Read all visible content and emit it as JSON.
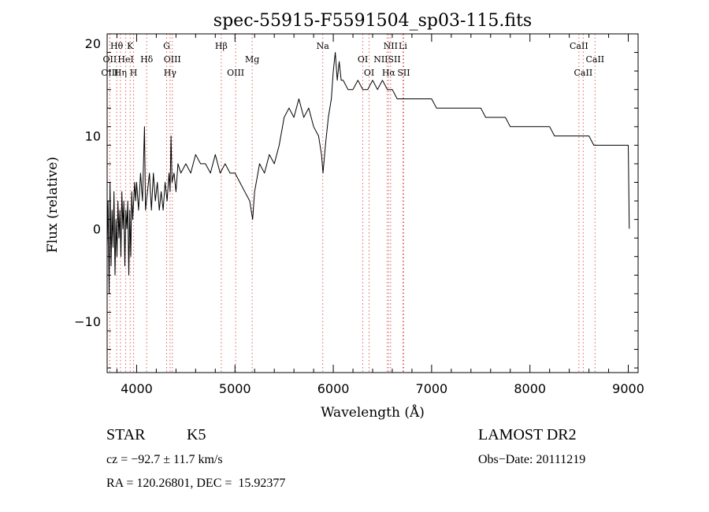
{
  "chart_data": {
    "type": "line",
    "title": "spec-55915-F5591504_sp03-115.fits",
    "xlabel": "Wavelength (Å)",
    "ylabel": "Flux (relative)",
    "xlim": [
      3700,
      9100
    ],
    "ylim": [
      -15.5,
      21
    ],
    "xticks": [
      4000,
      5000,
      6000,
      7000,
      8000,
      9000
    ],
    "xtick_labels": [
      "4000",
      "5000",
      "6000",
      "7000",
      "8000",
      "9000"
    ],
    "yticks": [
      -10,
      0,
      10,
      20
    ],
    "ytick_labels": [
      "−10",
      "0",
      "10",
      "20"
    ],
    "grid": false,
    "spectrum_color": "#000000",
    "line_marker_color": "#e06060",
    "series": [
      {
        "points": [
          [
            3700,
            -2
          ],
          [
            3710,
            3
          ],
          [
            3720,
            -7
          ],
          [
            3730,
            5
          ],
          [
            3740,
            -4
          ],
          [
            3750,
            2
          ],
          [
            3760,
            -2
          ],
          [
            3770,
            4
          ],
          [
            3780,
            -5
          ],
          [
            3790,
            1
          ],
          [
            3800,
            -3
          ],
          [
            3810,
            3
          ],
          [
            3820,
            -1
          ],
          [
            3830,
            2
          ],
          [
            3840,
            -3
          ],
          [
            3850,
            4
          ],
          [
            3860,
            0
          ],
          [
            3870,
            3
          ],
          [
            3880,
            -4
          ],
          [
            3890,
            2
          ],
          [
            3900,
            0
          ],
          [
            3910,
            3
          ],
          [
            3920,
            -5
          ],
          [
            3930,
            2
          ],
          [
            3940,
            -3
          ],
          [
            3950,
            4
          ],
          [
            3960,
            1
          ],
          [
            3970,
            3
          ],
          [
            3980,
            5
          ],
          [
            3990,
            3
          ],
          [
            4000,
            5
          ],
          [
            4020,
            2
          ],
          [
            4040,
            6
          ],
          [
            4060,
            3
          ],
          [
            4080,
            11
          ],
          [
            4090,
            2
          ],
          [
            4110,
            4
          ],
          [
            4130,
            6
          ],
          [
            4150,
            2
          ],
          [
            4170,
            6
          ],
          [
            4190,
            3
          ],
          [
            4210,
            5
          ],
          [
            4230,
            2
          ],
          [
            4250,
            4
          ],
          [
            4270,
            2
          ],
          [
            4290,
            5
          ],
          [
            4310,
            3
          ],
          [
            4330,
            6
          ],
          [
            4340,
            4
          ],
          [
            4350,
            10
          ],
          [
            4360,
            5
          ],
          [
            4380,
            6
          ],
          [
            4400,
            4
          ],
          [
            4420,
            7
          ],
          [
            4450,
            6
          ],
          [
            4500,
            7
          ],
          [
            4550,
            6
          ],
          [
            4600,
            8
          ],
          [
            4650,
            7
          ],
          [
            4700,
            7
          ],
          [
            4750,
            6
          ],
          [
            4800,
            8
          ],
          [
            4850,
            6
          ],
          [
            4900,
            7
          ],
          [
            4950,
            6
          ],
          [
            5000,
            6
          ],
          [
            5050,
            5
          ],
          [
            5100,
            4
          ],
          [
            5150,
            3
          ],
          [
            5180,
            1
          ],
          [
            5200,
            4
          ],
          [
            5250,
            7
          ],
          [
            5300,
            6
          ],
          [
            5350,
            8
          ],
          [
            5400,
            7
          ],
          [
            5450,
            9
          ],
          [
            5500,
            12
          ],
          [
            5550,
            13
          ],
          [
            5600,
            12
          ],
          [
            5650,
            14
          ],
          [
            5700,
            12
          ],
          [
            5750,
            13
          ],
          [
            5800,
            11
          ],
          [
            5850,
            10
          ],
          [
            5880,
            8
          ],
          [
            5895,
            6
          ],
          [
            5920,
            9
          ],
          [
            5950,
            12
          ],
          [
            5980,
            14
          ],
          [
            6000,
            17
          ],
          [
            6020,
            19
          ],
          [
            6040,
            16
          ],
          [
            6060,
            18
          ],
          [
            6080,
            16
          ],
          [
            6100,
            16
          ],
          [
            6150,
            15
          ],
          [
            6200,
            15
          ],
          [
            6250,
            16
          ],
          [
            6300,
            15
          ],
          [
            6350,
            15
          ],
          [
            6400,
            16
          ],
          [
            6450,
            15
          ],
          [
            6500,
            16
          ],
          [
            6550,
            15
          ],
          [
            6600,
            15
          ],
          [
            6650,
            14
          ],
          [
            6700,
            14
          ],
          [
            6750,
            14
          ],
          [
            6800,
            14
          ],
          [
            6850,
            14
          ],
          [
            6900,
            14
          ],
          [
            6950,
            14
          ],
          [
            7000,
            14
          ],
          [
            7050,
            13
          ],
          [
            7100,
            13
          ],
          [
            7150,
            13
          ],
          [
            7200,
            13
          ],
          [
            7250,
            13
          ],
          [
            7300,
            13
          ],
          [
            7350,
            13
          ],
          [
            7400,
            13
          ],
          [
            7450,
            13
          ],
          [
            7500,
            13
          ],
          [
            7550,
            12
          ],
          [
            7600,
            12
          ],
          [
            7650,
            12
          ],
          [
            7700,
            12
          ],
          [
            7750,
            12
          ],
          [
            7800,
            11
          ],
          [
            7850,
            11
          ],
          [
            7900,
            11
          ],
          [
            7950,
            11
          ],
          [
            8000,
            11
          ],
          [
            8050,
            11
          ],
          [
            8100,
            11
          ],
          [
            8150,
            11
          ],
          [
            8200,
            11
          ],
          [
            8250,
            10
          ],
          [
            8300,
            10
          ],
          [
            8350,
            10
          ],
          [
            8400,
            10
          ],
          [
            8450,
            10
          ],
          [
            8500,
            10
          ],
          [
            8550,
            10
          ],
          [
            8600,
            10
          ],
          [
            8650,
            9
          ],
          [
            8700,
            9
          ],
          [
            8750,
            9
          ],
          [
            8800,
            9
          ],
          [
            8850,
            9
          ],
          [
            8900,
            9
          ],
          [
            8950,
            9
          ],
          [
            9000,
            9
          ],
          [
            9010,
            0
          ]
        ]
      }
    ],
    "line_markers": [
      {
        "label": "Hθ",
        "wavelength": 3797,
        "row": 0
      },
      {
        "label": "K",
        "wavelength": 3934,
        "row": 0
      },
      {
        "label": "G",
        "wavelength": 4305,
        "row": 0
      },
      {
        "label": "Hβ",
        "wavelength": 4861,
        "row": 0
      },
      {
        "label": "Na",
        "wavelength": 5893,
        "row": 0
      },
      {
        "label": "NII",
        "wavelength": 6583,
        "row": 0
      },
      {
        "label": "Li",
        "wavelength": 6708,
        "row": 0
      },
      {
        "label": "CaII",
        "wavelength": 8498,
        "row": 0
      },
      {
        "label": "OII",
        "wavelength": 3727,
        "row": 1
      },
      {
        "label": "HeI",
        "wavelength": 3889,
        "row": 1
      },
      {
        "label": "Hδ",
        "wavelength": 4102,
        "row": 1
      },
      {
        "label": "OIII",
        "wavelength": 4363,
        "row": 1
      },
      {
        "label": "Mg",
        "wavelength": 5175,
        "row": 1
      },
      {
        "label": "OI",
        "wavelength": 6300,
        "row": 1
      },
      {
        "label": "NIISII",
        "wavelength": 6548,
        "row": 1
      },
      {
        "label": "CaII",
        "wavelength": 8662,
        "row": 1
      },
      {
        "label": "OIII",
        "wavelength": 3727,
        "row": 2
      },
      {
        "label": "Hη",
        "wavelength": 3835,
        "row": 2
      },
      {
        "label": "H",
        "wavelength": 3969,
        "row": 2
      },
      {
        "label": "Hγ",
        "wavelength": 4340,
        "row": 2
      },
      {
        "label": "OIII",
        "wavelength": 5007,
        "row": 2
      },
      {
        "label": "OI",
        "wavelength": 6364,
        "row": 2
      },
      {
        "label": "Hα",
        "wavelength": 6563,
        "row": 2
      },
      {
        "label": "SII",
        "wavelength": 6716,
        "row": 2
      },
      {
        "label": "CaII",
        "wavelength": 8542,
        "row": 2
      }
    ]
  },
  "info": {
    "object_type": "STAR",
    "subclass": "K5",
    "survey": "LAMOST DR2",
    "cz": "cz = −92.7 ± 11.7 km/s",
    "obs_date": "Obs−Date: 20111219",
    "coords": "RA = 120.26801, DEC =  15.92377"
  }
}
